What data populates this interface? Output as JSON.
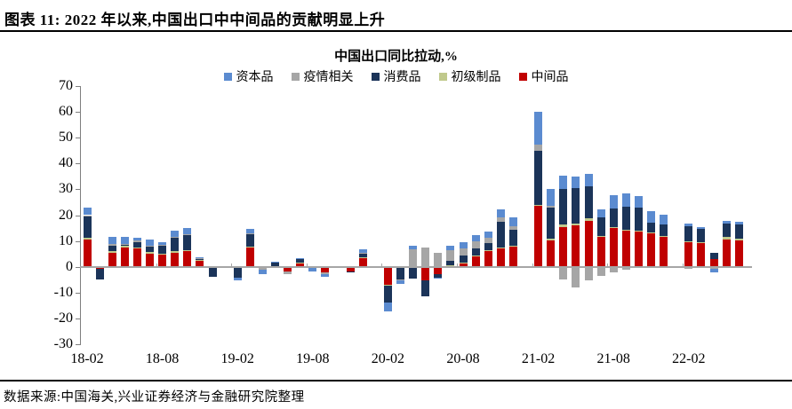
{
  "page": {
    "title": "图表 11: 2022 年以来,中国出口中中间品的贡献明显上升",
    "source_note": "数据来源:中国海关,兴业证券经济与金融研究院整理"
  },
  "chart_data": {
    "type": "bar",
    "stacked": true,
    "title": "中国出口同比拉动,%",
    "xlabel": "",
    "ylabel": "",
    "ylim": [
      -30,
      70
    ],
    "ytick_step": 10,
    "grid": false,
    "legend_position": "top",
    "legend_items": [
      {
        "label": "资本品",
        "color": "#5b8bd0"
      },
      {
        "label": "疫情相关",
        "color": "#a6a6a6"
      },
      {
        "label": "消费品",
        "color": "#1b3459"
      },
      {
        "label": "初级制品",
        "color": "#c0c98c"
      },
      {
        "label": "中间品",
        "color": "#c00000"
      }
    ],
    "x_tick_labels": [
      "18-02",
      "18-08",
      "19-02",
      "19-08",
      "20-02",
      "20-08",
      "21-02",
      "21-08",
      "22-02"
    ],
    "categories": [
      "18-02",
      "18-03",
      "18-04",
      "18-05",
      "18-06",
      "18-07",
      "18-08",
      "18-09",
      "18-10",
      "18-11",
      "18-12",
      "19-02",
      "19-03",
      "19-04",
      "19-05",
      "19-06",
      "19-07",
      "19-08",
      "19-09",
      "19-10",
      "19-11",
      "19-12",
      "20-02",
      "20-03",
      "20-04",
      "20-05",
      "20-06",
      "20-07",
      "20-08",
      "20-09",
      "20-10",
      "20-11",
      "20-12",
      "21-02",
      "21-03",
      "21-04",
      "21-05",
      "21-06",
      "21-07",
      "21-08",
      "21-09",
      "21-10",
      "21-11",
      "21-12",
      "22-02",
      "22-03",
      "22-04",
      "22-05",
      "22-06"
    ],
    "series": [
      {
        "name": "中间品",
        "color": "#c00000",
        "values": [
          10.5,
          -0.8,
          5.5,
          7.5,
          7.2,
          5.2,
          4.9,
          5.5,
          6.1,
          2.7,
          -0.5,
          -0.6,
          7.4,
          -0.4,
          0.2,
          -1.9,
          1.5,
          -0.3,
          -2.3,
          -0.2,
          -1.9,
          3.4,
          -7.0,
          -0.4,
          0.2,
          -5.2,
          -3.0,
          0.6,
          1.5,
          4.4,
          6.1,
          7.1,
          8.0,
          23.5,
          10.3,
          15.5,
          16.0,
          17.8,
          11.5,
          14.9,
          13.9,
          13.6,
          13.0,
          11.8,
          9.8,
          9.2,
          2.9,
          10.7,
          10.3
        ]
      },
      {
        "name": "初级制品",
        "color": "#c0c98c",
        "values": [
          0.7,
          0,
          0.5,
          0.7,
          0.2,
          0.5,
          0.3,
          0.6,
          0.3,
          0.1,
          0,
          0,
          0.3,
          0,
          0.2,
          0,
          0.1,
          0,
          0,
          0,
          0,
          0.2,
          -0.2,
          0,
          0.1,
          -0.1,
          0,
          0.1,
          0.2,
          0.1,
          0.2,
          0.2,
          0.2,
          0.4,
          0.5,
          0.8,
          0.9,
          1.0,
          0.3,
          0.3,
          0.3,
          0.4,
          0.2,
          0.2,
          0.1,
          0.4,
          0,
          0.8,
          0.6
        ]
      },
      {
        "name": "消费品",
        "color": "#1b3459",
        "values": [
          8.3,
          -4.2,
          2.1,
          0.4,
          2.2,
          2.3,
          2.9,
          5.4,
          5.9,
          0.2,
          -3.3,
          -3.6,
          5.1,
          0,
          1.2,
          0,
          1.3,
          0,
          0,
          -0.1,
          -0.1,
          1.8,
          -6.6,
          -4.4,
          -4.6,
          -6.2,
          -1.2,
          1.7,
          2.5,
          2.7,
          3.0,
          10.2,
          6.0,
          21.0,
          12.1,
          14.0,
          13.5,
          12.2,
          7.3,
          7.4,
          9.1,
          8.8,
          3.8,
          4.4,
          5.8,
          5.0,
          2.6,
          5.2,
          5.4
        ]
      },
      {
        "name": "疫情相关",
        "color": "#a6a6a6",
        "values": [
          0.5,
          0,
          0.7,
          0.3,
          0.6,
          0.2,
          0.3,
          0.2,
          0.4,
          0.4,
          0,
          0,
          0.2,
          -0.8,
          0,
          -0.8,
          0,
          -0.2,
          -0.4,
          0,
          0,
          0.1,
          0,
          -0.4,
          6.5,
          7.5,
          5.5,
          4.0,
          2.9,
          2.7,
          2.1,
          1.5,
          1.5,
          2.5,
          0.7,
          -4.8,
          -8.0,
          -5.2,
          -3.4,
          -2.0,
          -1.2,
          -0.5,
          0,
          0,
          -0.8,
          0,
          -0.9,
          0,
          0
        ]
      },
      {
        "name": "资本品",
        "color": "#5b8bd0",
        "values": [
          3.0,
          0,
          2.7,
          2.6,
          1.1,
          2.5,
          1.0,
          2.4,
          2.2,
          0.4,
          0,
          -1.0,
          1.6,
          -1.6,
          0.2,
          0,
          0.4,
          -1.3,
          -1.3,
          0,
          0,
          1.1,
          -3.6,
          -1.6,
          1.3,
          0,
          -0.3,
          1.8,
          2.3,
          2.5,
          2.3,
          3.3,
          3.3,
          12.8,
          6.4,
          5.0,
          4.6,
          5.0,
          3.3,
          5.0,
          5.2,
          4.6,
          4.4,
          3.7,
          0.9,
          0.8,
          -1.4,
          0.9,
          1.2
        ]
      }
    ]
  }
}
